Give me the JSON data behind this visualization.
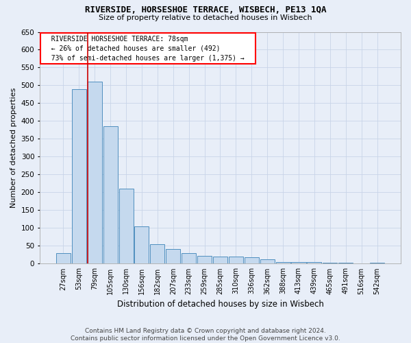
{
  "title": "RIVERSIDE, HORSESHOE TERRACE, WISBECH, PE13 1QA",
  "subtitle": "Size of property relative to detached houses in Wisbech",
  "xlabel": "Distribution of detached houses by size in Wisbech",
  "ylabel": "Number of detached properties",
  "footer_line1": "Contains HM Land Registry data © Crown copyright and database right 2024.",
  "footer_line2": "Contains public sector information licensed under the Open Government Licence v3.0.",
  "annotation_line1": "RIVERSIDE HORSESHOE TERRACE: 78sqm",
  "annotation_line2": "← 26% of detached houses are smaller (492)",
  "annotation_line3": "73% of semi-detached houses are larger (1,375) →",
  "bar_edge_color": "#4f8fbf",
  "bar_face_color": "#c5d9ee",
  "grid_color": "#c8d4e8",
  "background_color": "#e8eef8",
  "red_line_color": "#cc0000",
  "categories": [
    "27sqm",
    "53sqm",
    "79sqm",
    "105sqm",
    "130sqm",
    "156sqm",
    "182sqm",
    "207sqm",
    "233sqm",
    "259sqm",
    "285sqm",
    "310sqm",
    "336sqm",
    "362sqm",
    "388sqm",
    "413sqm",
    "439sqm",
    "465sqm",
    "491sqm",
    "516sqm",
    "542sqm"
  ],
  "bar_values": [
    30,
    490,
    510,
    385,
    210,
    105,
    55,
    42,
    30,
    22,
    20,
    20,
    18,
    12,
    5,
    5,
    5,
    2,
    2,
    1,
    2
  ],
  "red_line_index": 2,
  "ylim": [
    0,
    650
  ],
  "yticks": [
    0,
    50,
    100,
    150,
    200,
    250,
    300,
    350,
    400,
    450,
    500,
    550,
    600,
    650
  ],
  "annotation_fontsize": 7,
  "title_fontsize": 9,
  "subtitle_fontsize": 8,
  "ylabel_fontsize": 8,
  "xlabel_fontsize": 8.5,
  "footer_fontsize": 6.5,
  "xtick_fontsize": 7,
  "ytick_fontsize": 7.5
}
